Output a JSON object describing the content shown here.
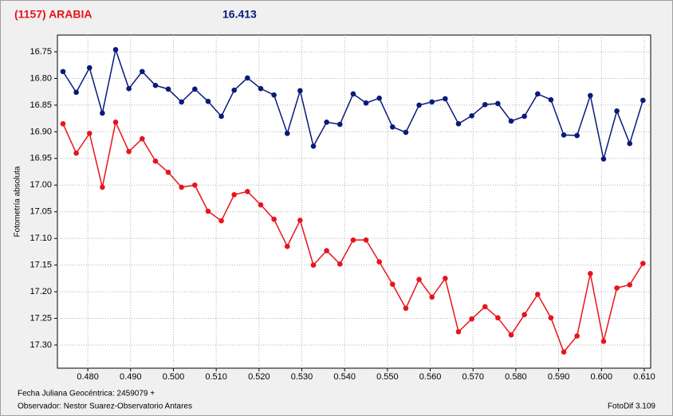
{
  "chart_data": {
    "type": "line",
    "title": "(1157) ARABIA",
    "subtitle": "16.413",
    "y_label": "Fotometría absoluta",
    "footer_left_1": "Fecha Juliana Geocéntrica: 2459079 +",
    "footer_left_2": "Observador: Nestor Suarez-Observatorio Antares",
    "footer_right": "FotoDif 3.109",
    "x": [
      0.4742,
      0.4773,
      0.4804,
      0.4834,
      0.4865,
      0.4896,
      0.4927,
      0.4958,
      0.4988,
      0.5019,
      0.505,
      0.5081,
      0.5112,
      0.5142,
      0.5173,
      0.5204,
      0.5235,
      0.5266,
      0.5296,
      0.5327,
      0.5358,
      0.5389,
      0.542,
      0.545,
      0.5481,
      0.5512,
      0.5543,
      0.5574,
      0.5604,
      0.5635,
      0.5666,
      0.5697,
      0.5728,
      0.5758,
      0.5789,
      0.582,
      0.5851,
      0.5882,
      0.5912,
      0.5943,
      0.5974,
      0.6005,
      0.6036,
      0.6066,
      0.6097
    ],
    "series": [
      {
        "color": "#0a1a7a",
        "values": [
          16.787,
          16.826,
          16.78,
          16.865,
          16.746,
          16.819,
          16.787,
          16.813,
          16.82,
          16.844,
          16.82,
          16.843,
          16.871,
          16.822,
          16.799,
          16.819,
          16.831,
          16.903,
          16.823,
          16.927,
          16.882,
          16.886,
          16.829,
          16.846,
          16.837,
          16.891,
          16.901,
          16.85,
          16.844,
          16.838,
          16.885,
          16.87,
          16.849,
          16.847,
          16.88,
          16.871,
          16.829,
          16.84,
          16.906,
          16.907,
          16.832,
          16.951,
          16.861,
          16.922,
          16.841
        ]
      },
      {
        "color": "#e8141c",
        "values": [
          16.885,
          16.94,
          16.903,
          17.004,
          16.882,
          16.937,
          16.913,
          16.955,
          16.976,
          17.004,
          17.0,
          17.049,
          17.067,
          17.018,
          17.012,
          17.037,
          17.064,
          17.115,
          17.066,
          17.15,
          17.123,
          17.148,
          17.103,
          17.103,
          17.144,
          17.186,
          17.231,
          17.177,
          17.21,
          17.175,
          17.275,
          17.251,
          17.228,
          17.249,
          17.281,
          17.243,
          17.205,
          17.249,
          17.313,
          17.283,
          17.166,
          17.293,
          17.193,
          17.187,
          17.147
        ]
      }
    ],
    "xlim": [
      0.4729,
      0.6115
    ],
    "xticks": [
      {
        "value": 0.48,
        "label": "0.480"
      },
      {
        "value": 0.49,
        "label": "0.490"
      },
      {
        "value": 0.5,
        "label": "0.500"
      },
      {
        "value": 0.51,
        "label": "0.510"
      },
      {
        "value": 0.52,
        "label": "0.520"
      },
      {
        "value": 0.53,
        "label": "0.530"
      },
      {
        "value": 0.54,
        "label": "0.540"
      },
      {
        "value": 0.55,
        "label": "0.550"
      },
      {
        "value": 0.56,
        "label": "0.560"
      },
      {
        "value": 0.57,
        "label": "0.570"
      },
      {
        "value": 0.58,
        "label": "0.580"
      },
      {
        "value": 0.59,
        "label": "0.590"
      },
      {
        "value": 0.6,
        "label": "0.600"
      },
      {
        "value": 0.61,
        "label": "0.610"
      }
    ],
    "ylim": [
      16.7186,
      17.3434
    ],
    "y_inverted": true,
    "yticks": [
      16.75,
      {
        "value": 16.8,
        "label": "16.80"
      },
      16.85,
      {
        "value": 16.9,
        "label": "16.90"
      },
      16.95,
      {
        "value": 17.0,
        "label": "17.00"
      },
      17.05,
      {
        "value": 17.1,
        "label": "17.10"
      },
      17.15,
      {
        "value": 17.2,
        "label": "17.20"
      },
      17.25,
      {
        "value": 17.3,
        "label": "17.30"
      }
    ],
    "grid": true
  }
}
